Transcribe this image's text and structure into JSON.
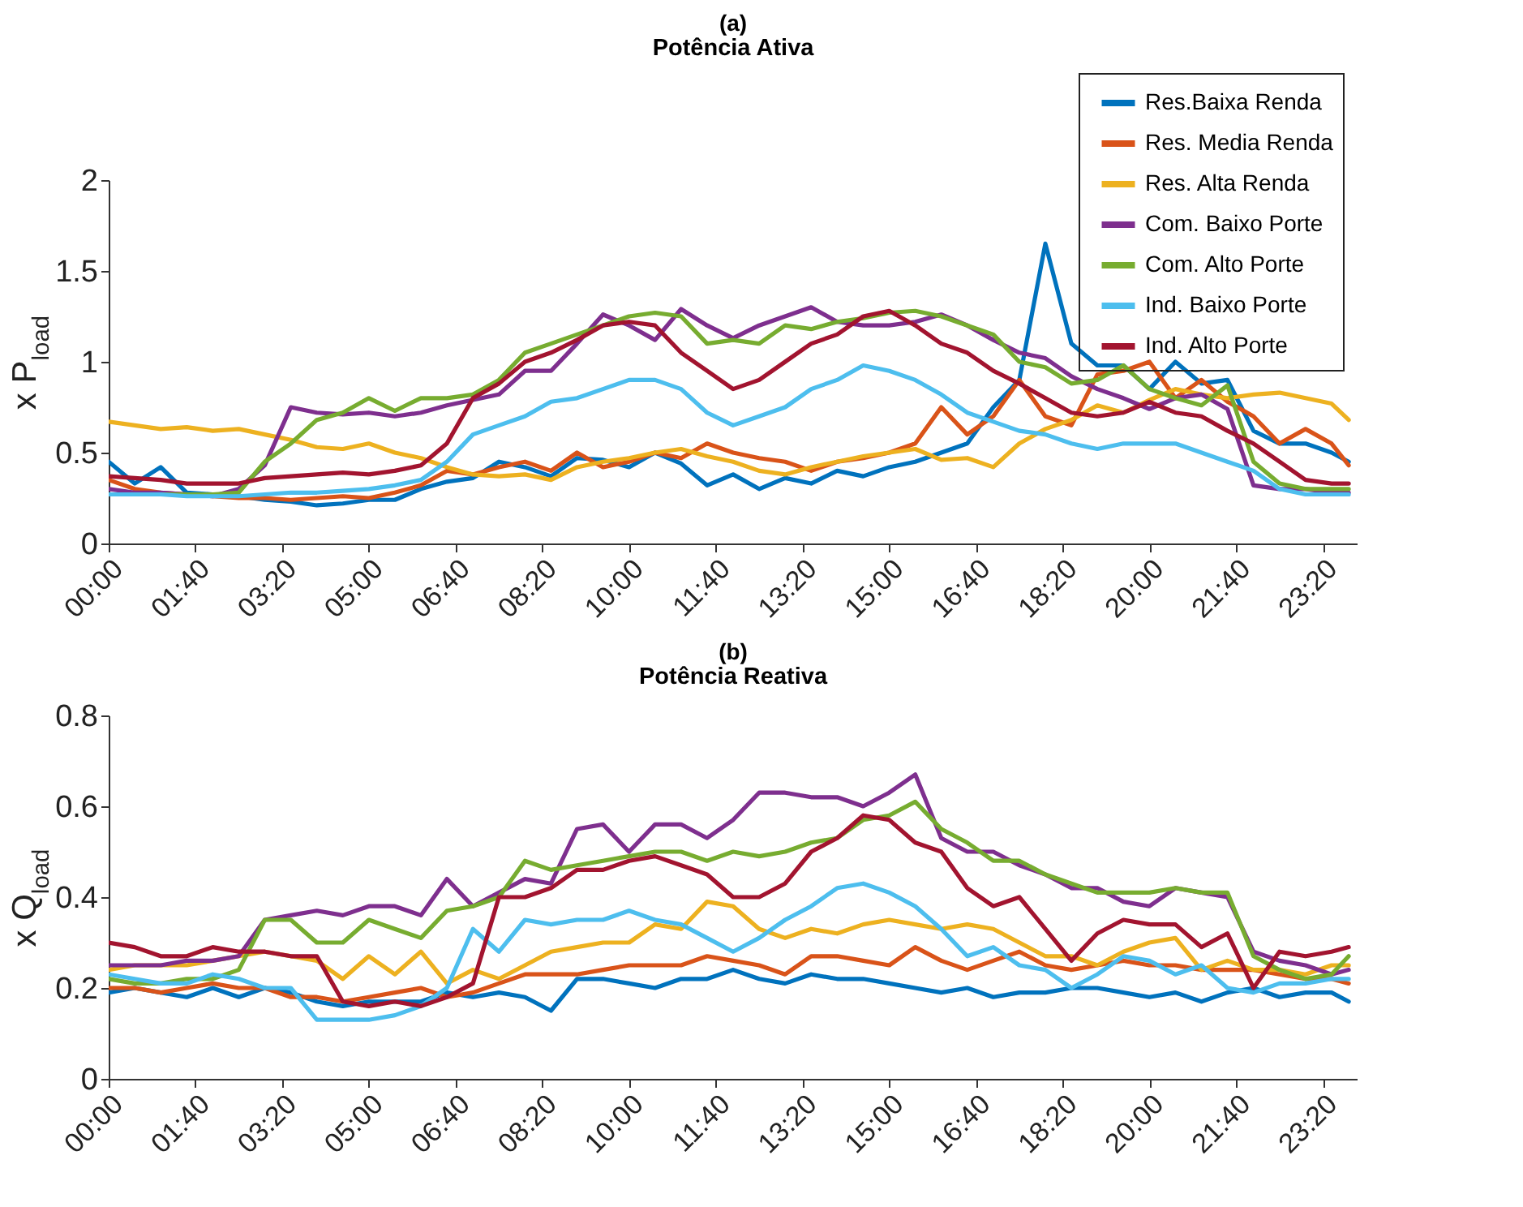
{
  "chart_data": [
    {
      "type": "line",
      "title": "(a)",
      "subtitle": "Potência Ativa",
      "ylabel": "x P$_{load}$",
      "legend": "top right",
      "grid": false,
      "x": [
        0,
        0.5,
        1,
        1.5,
        2,
        2.5,
        3,
        3.5,
        4,
        4.5,
        5,
        5.5,
        6,
        6.5,
        7,
        7.5,
        8,
        8.5,
        9,
        9.5,
        10,
        10.5,
        11,
        11.5,
        12,
        12.5,
        13,
        13.5,
        14,
        14.5,
        15,
        15.5,
        16,
        16.5,
        17,
        17.5,
        18,
        18.5,
        19,
        19.5,
        20,
        20.5,
        21,
        21.5,
        22,
        22.5,
        23,
        23.5,
        23.83
      ],
      "xlim": [
        0,
        24
      ],
      "xticks": [
        {
          "value": 0,
          "label": "00:00"
        },
        {
          "value": 1.6667,
          "label": "01:40"
        },
        {
          "value": 3.3333,
          "label": "03:20"
        },
        {
          "value": 5,
          "label": "05:00"
        },
        {
          "value": 6.6667,
          "label": "06:40"
        },
        {
          "value": 8.3333,
          "label": "08:20"
        },
        {
          "value": 10,
          "label": "10:00"
        },
        {
          "value": 11.6667,
          "label": "11:40"
        },
        {
          "value": 13.3333,
          "label": "13:20"
        },
        {
          "value": 15,
          "label": "15:00"
        },
        {
          "value": 16.6667,
          "label": "16:40"
        },
        {
          "value": 18.3333,
          "label": "18:20"
        },
        {
          "value": 20,
          "label": "20:00"
        },
        {
          "value": 21.6667,
          "label": "21:40"
        },
        {
          "value": 23.3333,
          "label": "23:20"
        }
      ],
      "ylim": [
        0,
        2
      ],
      "yticks": [
        0,
        0.5,
        1,
        1.5,
        2
      ],
      "series": [
        {
          "name": "Res.Baixa Renda",
          "color": "#0072bd",
          "values": [
            0.45,
            0.33,
            0.42,
            0.28,
            0.27,
            0.26,
            0.24,
            0.23,
            0.21,
            0.22,
            0.24,
            0.24,
            0.3,
            0.34,
            0.36,
            0.45,
            0.42,
            0.37,
            0.47,
            0.46,
            0.42,
            0.5,
            0.44,
            0.32,
            0.38,
            0.3,
            0.36,
            0.33,
            0.4,
            0.37,
            0.42,
            0.45,
            0.5,
            0.55,
            0.75,
            0.9,
            1.65,
            1.1,
            0.98,
            0.98,
            0.85,
            1.0,
            0.88,
            0.9,
            0.62,
            0.55,
            0.55,
            0.5,
            0.45
          ]
        },
        {
          "name": "Res. Media Renda",
          "color": "#d95319",
          "values": [
            0.35,
            0.3,
            0.28,
            0.27,
            0.26,
            0.25,
            0.25,
            0.24,
            0.25,
            0.26,
            0.25,
            0.28,
            0.32,
            0.4,
            0.38,
            0.42,
            0.45,
            0.4,
            0.5,
            0.42,
            0.45,
            0.5,
            0.47,
            0.55,
            0.5,
            0.47,
            0.45,
            0.4,
            0.45,
            0.47,
            0.5,
            0.55,
            0.75,
            0.6,
            0.7,
            0.9,
            0.7,
            0.65,
            0.93,
            0.95,
            1.0,
            0.8,
            0.9,
            0.78,
            0.7,
            0.55,
            0.63,
            0.55,
            0.43
          ]
        },
        {
          "name": "Res. Alta Renda",
          "color": "#edb120",
          "values": [
            0.67,
            0.65,
            0.63,
            0.64,
            0.62,
            0.63,
            0.6,
            0.57,
            0.53,
            0.52,
            0.55,
            0.5,
            0.47,
            0.42,
            0.38,
            0.37,
            0.38,
            0.35,
            0.42,
            0.45,
            0.47,
            0.5,
            0.52,
            0.48,
            0.45,
            0.4,
            0.38,
            0.42,
            0.45,
            0.48,
            0.5,
            0.52,
            0.46,
            0.47,
            0.42,
            0.55,
            0.63,
            0.68,
            0.76,
            0.72,
            0.79,
            0.85,
            0.82,
            0.8,
            0.82,
            0.83,
            0.8,
            0.77,
            0.68
          ]
        },
        {
          "name": "Com. Baixo Porte",
          "color": "#7e2f8e",
          "values": [
            0.3,
            0.28,
            0.28,
            0.27,
            0.26,
            0.3,
            0.43,
            0.75,
            0.72,
            0.71,
            0.72,
            0.7,
            0.72,
            0.76,
            0.79,
            0.82,
            0.95,
            0.95,
            1.1,
            1.26,
            1.2,
            1.12,
            1.29,
            1.2,
            1.13,
            1.2,
            1.25,
            1.3,
            1.22,
            1.2,
            1.2,
            1.22,
            1.26,
            1.2,
            1.12,
            1.05,
            1.02,
            0.92,
            0.85,
            0.8,
            0.74,
            0.8,
            0.82,
            0.74,
            0.32,
            0.3,
            0.3,
            0.28,
            0.28
          ]
        },
        {
          "name": "Com. Alto Porte",
          "color": "#77ac30",
          "values": [
            0.27,
            0.27,
            0.27,
            0.27,
            0.27,
            0.28,
            0.45,
            0.55,
            0.68,
            0.72,
            0.8,
            0.73,
            0.8,
            0.8,
            0.82,
            0.9,
            1.05,
            1.1,
            1.15,
            1.2,
            1.25,
            1.27,
            1.25,
            1.1,
            1.12,
            1.1,
            1.2,
            1.18,
            1.22,
            1.24,
            1.27,
            1.28,
            1.25,
            1.2,
            1.15,
            1.0,
            0.97,
            0.88,
            0.9,
            0.98,
            0.85,
            0.8,
            0.76,
            0.87,
            0.45,
            0.33,
            0.3,
            0.3,
            0.3
          ]
        },
        {
          "name": "Ind. Baixo Porte",
          "color": "#4dbeee",
          "values": [
            0.27,
            0.27,
            0.27,
            0.26,
            0.26,
            0.26,
            0.27,
            0.28,
            0.28,
            0.29,
            0.3,
            0.32,
            0.35,
            0.45,
            0.6,
            0.65,
            0.7,
            0.78,
            0.8,
            0.85,
            0.9,
            0.9,
            0.85,
            0.72,
            0.65,
            0.7,
            0.75,
            0.85,
            0.9,
            0.98,
            0.95,
            0.9,
            0.82,
            0.72,
            0.67,
            0.62,
            0.6,
            0.55,
            0.52,
            0.55,
            0.55,
            0.55,
            0.5,
            0.45,
            0.4,
            0.3,
            0.27,
            0.27,
            0.27
          ]
        },
        {
          "name": "Ind. Alto Porte",
          "color": "#a2142f",
          "values": [
            0.37,
            0.36,
            0.35,
            0.33,
            0.33,
            0.33,
            0.36,
            0.37,
            0.38,
            0.39,
            0.38,
            0.4,
            0.43,
            0.55,
            0.8,
            0.88,
            1.0,
            1.05,
            1.12,
            1.2,
            1.22,
            1.2,
            1.05,
            0.95,
            0.85,
            0.9,
            1.0,
            1.1,
            1.15,
            1.25,
            1.28,
            1.2,
            1.1,
            1.05,
            0.95,
            0.88,
            0.8,
            0.72,
            0.7,
            0.72,
            0.78,
            0.72,
            0.7,
            0.62,
            0.55,
            0.45,
            0.35,
            0.33,
            0.33
          ]
        }
      ]
    },
    {
      "type": "line",
      "title": "(b)",
      "subtitle": "Potência Reativa",
      "ylabel": "x Q$_{load}$",
      "grid": false,
      "x": [
        0,
        0.5,
        1,
        1.5,
        2,
        2.5,
        3,
        3.5,
        4,
        4.5,
        5,
        5.5,
        6,
        6.5,
        7,
        7.5,
        8,
        8.5,
        9,
        9.5,
        10,
        10.5,
        11,
        11.5,
        12,
        12.5,
        13,
        13.5,
        14,
        14.5,
        15,
        15.5,
        16,
        16.5,
        17,
        17.5,
        18,
        18.5,
        19,
        19.5,
        20,
        20.5,
        21,
        21.5,
        22,
        22.5,
        23,
        23.5,
        23.83
      ],
      "xlim": [
        0,
        24
      ],
      "xticks": [
        {
          "value": 0,
          "label": "00:00"
        },
        {
          "value": 1.6667,
          "label": "01:40"
        },
        {
          "value": 3.3333,
          "label": "03:20"
        },
        {
          "value": 5,
          "label": "05:00"
        },
        {
          "value": 6.6667,
          "label": "06:40"
        },
        {
          "value": 8.3333,
          "label": "08:20"
        },
        {
          "value": 10,
          "label": "10:00"
        },
        {
          "value": 11.6667,
          "label": "11:40"
        },
        {
          "value": 13.3333,
          "label": "13:20"
        },
        {
          "value": 15,
          "label": "15:00"
        },
        {
          "value": 16.6667,
          "label": "16:40"
        },
        {
          "value": 18.3333,
          "label": "18:20"
        },
        {
          "value": 20,
          "label": "20:00"
        },
        {
          "value": 21.6667,
          "label": "21:40"
        },
        {
          "value": 23.3333,
          "label": "23:20"
        }
      ],
      "ylim": [
        0,
        0.8
      ],
      "yticks": [
        0,
        0.2,
        0.4,
        0.6,
        0.8
      ],
      "series": [
        {
          "color": "#0072bd",
          "values": [
            0.19,
            0.2,
            0.19,
            0.18,
            0.2,
            0.18,
            0.2,
            0.19,
            0.17,
            0.16,
            0.17,
            0.17,
            0.17,
            0.19,
            0.18,
            0.19,
            0.18,
            0.15,
            0.22,
            0.22,
            0.21,
            0.2,
            0.22,
            0.22,
            0.24,
            0.22,
            0.21,
            0.23,
            0.22,
            0.22,
            0.21,
            0.2,
            0.19,
            0.2,
            0.18,
            0.19,
            0.19,
            0.2,
            0.2,
            0.19,
            0.18,
            0.19,
            0.17,
            0.19,
            0.2,
            0.18,
            0.19,
            0.19,
            0.17
          ]
        },
        {
          "color": "#d95319",
          "values": [
            0.2,
            0.2,
            0.19,
            0.2,
            0.21,
            0.2,
            0.2,
            0.18,
            0.18,
            0.17,
            0.18,
            0.19,
            0.2,
            0.18,
            0.19,
            0.21,
            0.23,
            0.23,
            0.23,
            0.24,
            0.25,
            0.25,
            0.25,
            0.27,
            0.26,
            0.25,
            0.23,
            0.27,
            0.27,
            0.26,
            0.25,
            0.29,
            0.26,
            0.24,
            0.26,
            0.28,
            0.25,
            0.24,
            0.25,
            0.26,
            0.25,
            0.25,
            0.24,
            0.24,
            0.24,
            0.23,
            0.22,
            0.22,
            0.21
          ]
        },
        {
          "color": "#edb120",
          "values": [
            0.24,
            0.25,
            0.25,
            0.25,
            0.26,
            0.27,
            0.28,
            0.27,
            0.26,
            0.22,
            0.27,
            0.23,
            0.28,
            0.21,
            0.24,
            0.22,
            0.25,
            0.28,
            0.29,
            0.3,
            0.3,
            0.34,
            0.33,
            0.39,
            0.38,
            0.33,
            0.31,
            0.33,
            0.32,
            0.34,
            0.35,
            0.34,
            0.33,
            0.34,
            0.33,
            0.3,
            0.27,
            0.27,
            0.25,
            0.28,
            0.3,
            0.31,
            0.24,
            0.26,
            0.24,
            0.24,
            0.23,
            0.25,
            0.25
          ]
        },
        {
          "color": "#7e2f8e",
          "values": [
            0.25,
            0.25,
            0.25,
            0.26,
            0.26,
            0.27,
            0.35,
            0.36,
            0.37,
            0.36,
            0.38,
            0.38,
            0.36,
            0.44,
            0.38,
            0.41,
            0.44,
            0.43,
            0.55,
            0.56,
            0.5,
            0.56,
            0.56,
            0.53,
            0.57,
            0.63,
            0.63,
            0.62,
            0.62,
            0.6,
            0.63,
            0.67,
            0.53,
            0.5,
            0.5,
            0.47,
            0.45,
            0.42,
            0.42,
            0.39,
            0.38,
            0.42,
            0.41,
            0.4,
            0.28,
            0.26,
            0.25,
            0.23,
            0.24
          ]
        },
        {
          "color": "#77ac30",
          "values": [
            0.22,
            0.21,
            0.21,
            0.22,
            0.22,
            0.24,
            0.35,
            0.35,
            0.3,
            0.3,
            0.35,
            0.33,
            0.31,
            0.37,
            0.38,
            0.4,
            0.48,
            0.46,
            0.47,
            0.48,
            0.49,
            0.5,
            0.5,
            0.48,
            0.5,
            0.49,
            0.5,
            0.52,
            0.53,
            0.57,
            0.58,
            0.61,
            0.55,
            0.52,
            0.48,
            0.48,
            0.45,
            0.43,
            0.41,
            0.41,
            0.41,
            0.42,
            0.41,
            0.41,
            0.27,
            0.24,
            0.22,
            0.23,
            0.27
          ]
        },
        {
          "color": "#4dbeee",
          "values": [
            0.23,
            0.22,
            0.21,
            0.21,
            0.23,
            0.22,
            0.2,
            0.2,
            0.13,
            0.13,
            0.13,
            0.14,
            0.16,
            0.2,
            0.33,
            0.28,
            0.35,
            0.34,
            0.35,
            0.35,
            0.37,
            0.35,
            0.34,
            0.31,
            0.28,
            0.31,
            0.35,
            0.38,
            0.42,
            0.43,
            0.41,
            0.38,
            0.33,
            0.27,
            0.29,
            0.25,
            0.24,
            0.2,
            0.23,
            0.27,
            0.26,
            0.23,
            0.25,
            0.2,
            0.19,
            0.21,
            0.21,
            0.22,
            0.22
          ]
        },
        {
          "color": "#a2142f",
          "values": [
            0.3,
            0.29,
            0.27,
            0.27,
            0.29,
            0.28,
            0.28,
            0.27,
            0.27,
            0.17,
            0.16,
            0.17,
            0.16,
            0.18,
            0.21,
            0.4,
            0.4,
            0.42,
            0.46,
            0.46,
            0.48,
            0.49,
            0.47,
            0.45,
            0.4,
            0.4,
            0.43,
            0.5,
            0.53,
            0.58,
            0.57,
            0.52,
            0.5,
            0.42,
            0.38,
            0.4,
            0.33,
            0.26,
            0.32,
            0.35,
            0.34,
            0.34,
            0.29,
            0.32,
            0.2,
            0.28,
            0.27,
            0.28,
            0.29
          ]
        }
      ]
    }
  ]
}
